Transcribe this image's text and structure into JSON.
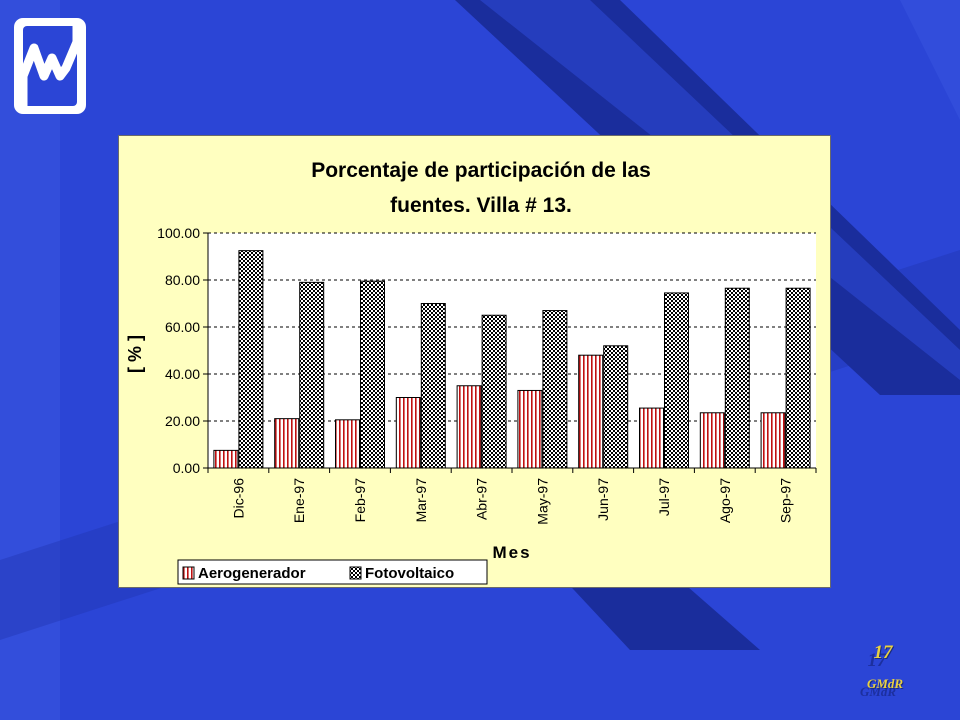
{
  "slide": {
    "page_number": "17",
    "brand": "GMdR",
    "background_color": "#2b45d6",
    "accent_color": "#e8d040"
  },
  "logo": {
    "icon": "wave-logo-icon"
  },
  "chart_data": {
    "type": "bar",
    "title": "Porcentaje de participación de las fuentes. Villa # 13.",
    "title_lines": [
      "Porcentaje de participación de las",
      "fuentes. Villa # 13."
    ],
    "xlabel": "Mes",
    "ylabel": "[ % ]",
    "categories": [
      "Dic-96",
      "Ene-97",
      "Feb-97",
      "Mar-97",
      "Abr-97",
      "May-97",
      "Jun-97",
      "Jul-97",
      "Ago-97",
      "Sep-97"
    ],
    "yticks": [
      "0.00",
      "20.00",
      "40.00",
      "60.00",
      "80.00",
      "100.00"
    ],
    "ylim": [
      0,
      100
    ],
    "grid": true,
    "legend_position": "bottom-left",
    "series": [
      {
        "name": "Aerogenerador",
        "values": [
          7.5,
          21,
          20.5,
          30,
          35,
          33,
          48,
          25.5,
          23.5,
          23.5
        ],
        "color": "#c01010"
      },
      {
        "name": "Fotovoltaico",
        "values": [
          92.5,
          79,
          79.5,
          70,
          65,
          67,
          52,
          74.5,
          76.5,
          76.5
        ],
        "color": "#000000"
      }
    ]
  }
}
